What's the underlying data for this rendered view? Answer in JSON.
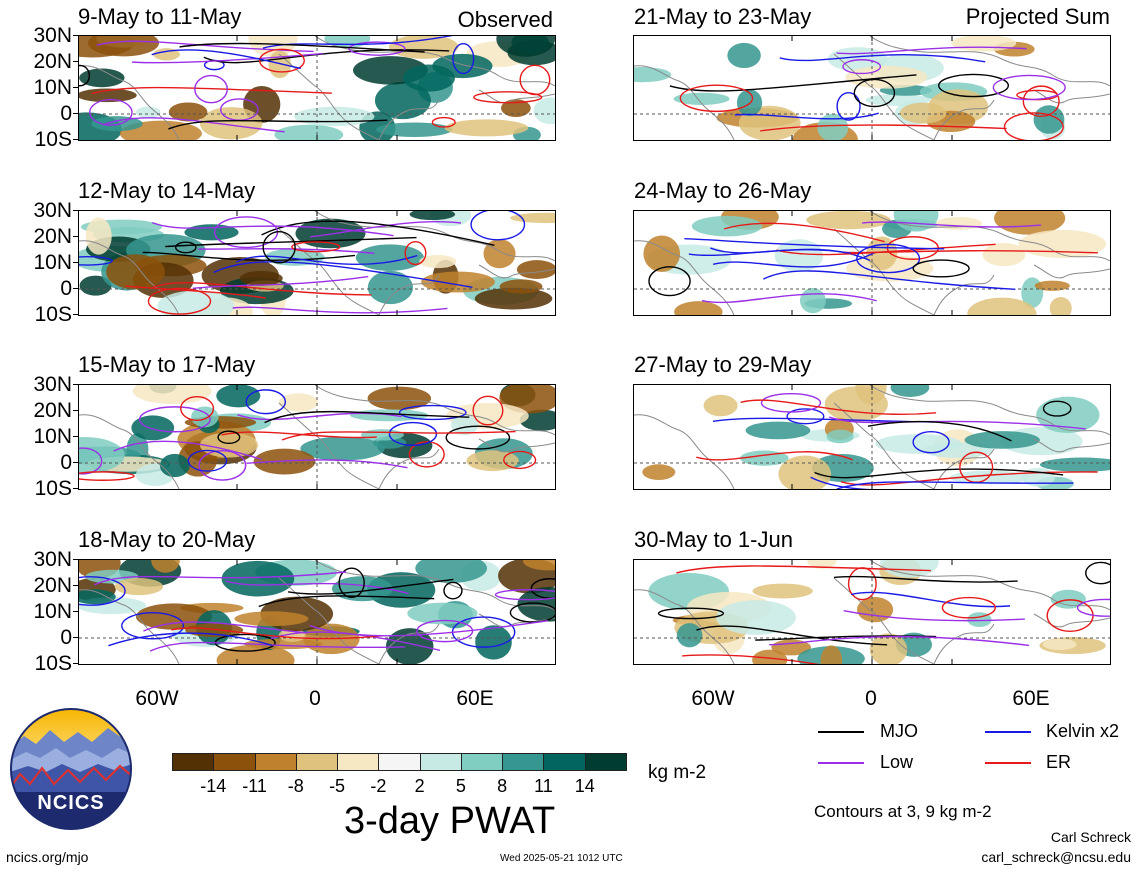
{
  "panels": [
    {
      "id": "p1",
      "title": "9-May to 11-May",
      "tag": "Observed",
      "seed": 3
    },
    {
      "id": "p2",
      "title": "12-May to 14-May",
      "tag": "",
      "seed": 11
    },
    {
      "id": "p3",
      "title": "15-May to 17-May",
      "tag": "",
      "seed": 23
    },
    {
      "id": "p4",
      "title": "18-May to 20-May",
      "tag": "",
      "seed": 37
    },
    {
      "id": "p5",
      "title": "21-May to 23-May",
      "tag": "Projected Sum",
      "seed": 41
    },
    {
      "id": "p6",
      "title": "24-May to 26-May",
      "tag": "",
      "seed": 53
    },
    {
      "id": "p7",
      "title": "27-May to 29-May",
      "tag": "",
      "seed": 61
    },
    {
      "id": "p8",
      "title": "30-May to 1-Jun",
      "tag": "",
      "seed": 79
    }
  ],
  "lat_labels": [
    "30N",
    "20N",
    "10N",
    "0",
    "10S"
  ],
  "lon_labels": [
    "60W",
    "0",
    "60E"
  ],
  "legend": {
    "mjo": "MJO",
    "kelvin": "Kelvin x2",
    "low": "Low",
    "er": "ER",
    "colors": {
      "mjo": "#000000",
      "kelvin": "#1a1ae6",
      "low": "#9b30e8",
      "er": "#e61a1a"
    },
    "contour_note": "Contours at 3, 9 kg m-2"
  },
  "colorbar": {
    "colors": [
      "#543005",
      "#8c510a",
      "#bf812d",
      "#dfc27d",
      "#f6e8c3",
      "#f5f5f5",
      "#c7eae5",
      "#80cdc1",
      "#35978f",
      "#01665e",
      "#003c30"
    ],
    "ticks": [
      "-14",
      "-11",
      "-8",
      "-5",
      "-2",
      "2",
      "5",
      "8",
      "11",
      "14"
    ],
    "units": "kg m-2",
    "title": "3-day PWAT"
  },
  "logo": {
    "text": "NCICS"
  },
  "footer": {
    "url": "ncics.org/mjo",
    "timestamp": "Wed 2025-05-21 1012 UTC",
    "author": "Carl Schreck",
    "email": "carl_schreck@ncsu.edu"
  }
}
